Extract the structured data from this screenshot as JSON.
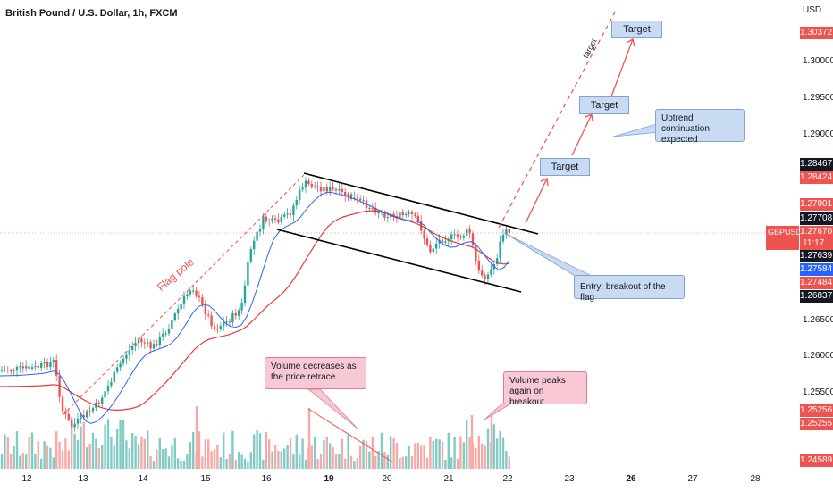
{
  "title": "British Pound / U.S. Dollar, 1h, FXCM",
  "axis_currency": "USD",
  "price_ticks": [
    "1.30000",
    "1.29500",
    "1.29000",
    "1.26500",
    "1.26000",
    "1.25500"
  ],
  "price_tags": [
    {
      "value": "1.30372",
      "color": "#ef5350"
    },
    {
      "value": "1.28467",
      "color": "#131722"
    },
    {
      "value": "1.28424",
      "color": "#ef5350"
    },
    {
      "value": "1.27901",
      "color": "#ef5350"
    },
    {
      "value": "1.27708",
      "color": "#131722"
    },
    {
      "value": "1.27639",
      "color": "#131722"
    },
    {
      "value": "1.27584",
      "color": "#2962ff"
    },
    {
      "value": "1.27484",
      "color": "#ef5350"
    },
    {
      "value": "1.26837",
      "color": "#131722"
    },
    {
      "value": "1.25256",
      "color": "#ef5350"
    },
    {
      "value": "1.25255",
      "color": "#ef5350"
    },
    {
      "value": "1.24589",
      "color": "#ef5350"
    }
  ],
  "symbol": {
    "name": "GBPUSD",
    "price": "1.27670",
    "countdown": "11:17",
    "color": "#ef5350"
  },
  "dates": [
    {
      "label": "12",
      "bold": false
    },
    {
      "label": "13",
      "bold": false
    },
    {
      "label": "14",
      "bold": false
    },
    {
      "label": "15",
      "bold": false
    },
    {
      "label": "16",
      "bold": false
    },
    {
      "label": "19",
      "bold": true
    },
    {
      "label": "20",
      "bold": false
    },
    {
      "label": "21",
      "bold": false
    },
    {
      "label": "22",
      "bold": false
    },
    {
      "label": "23",
      "bold": false
    },
    {
      "label": "26",
      "bold": true
    },
    {
      "label": "27",
      "bold": false
    },
    {
      "label": "28",
      "bold": false
    }
  ],
  "annotations": {
    "flag_pole": "Flag pole",
    "target_diag": "target",
    "targets": [
      "Target",
      "Target",
      "Target"
    ],
    "uptrend": "Uptrend continuation expected",
    "entry": "Entry: breakout of the flag",
    "volume_decrease": "Volume decreases as the price retrace",
    "volume_peak": "Volume peaks again on breakout"
  },
  "colors": {
    "up": "#26a69a",
    "down": "#ef5350",
    "ma_fast": "#2962ff",
    "ma_slow": "#e53935"
  }
}
